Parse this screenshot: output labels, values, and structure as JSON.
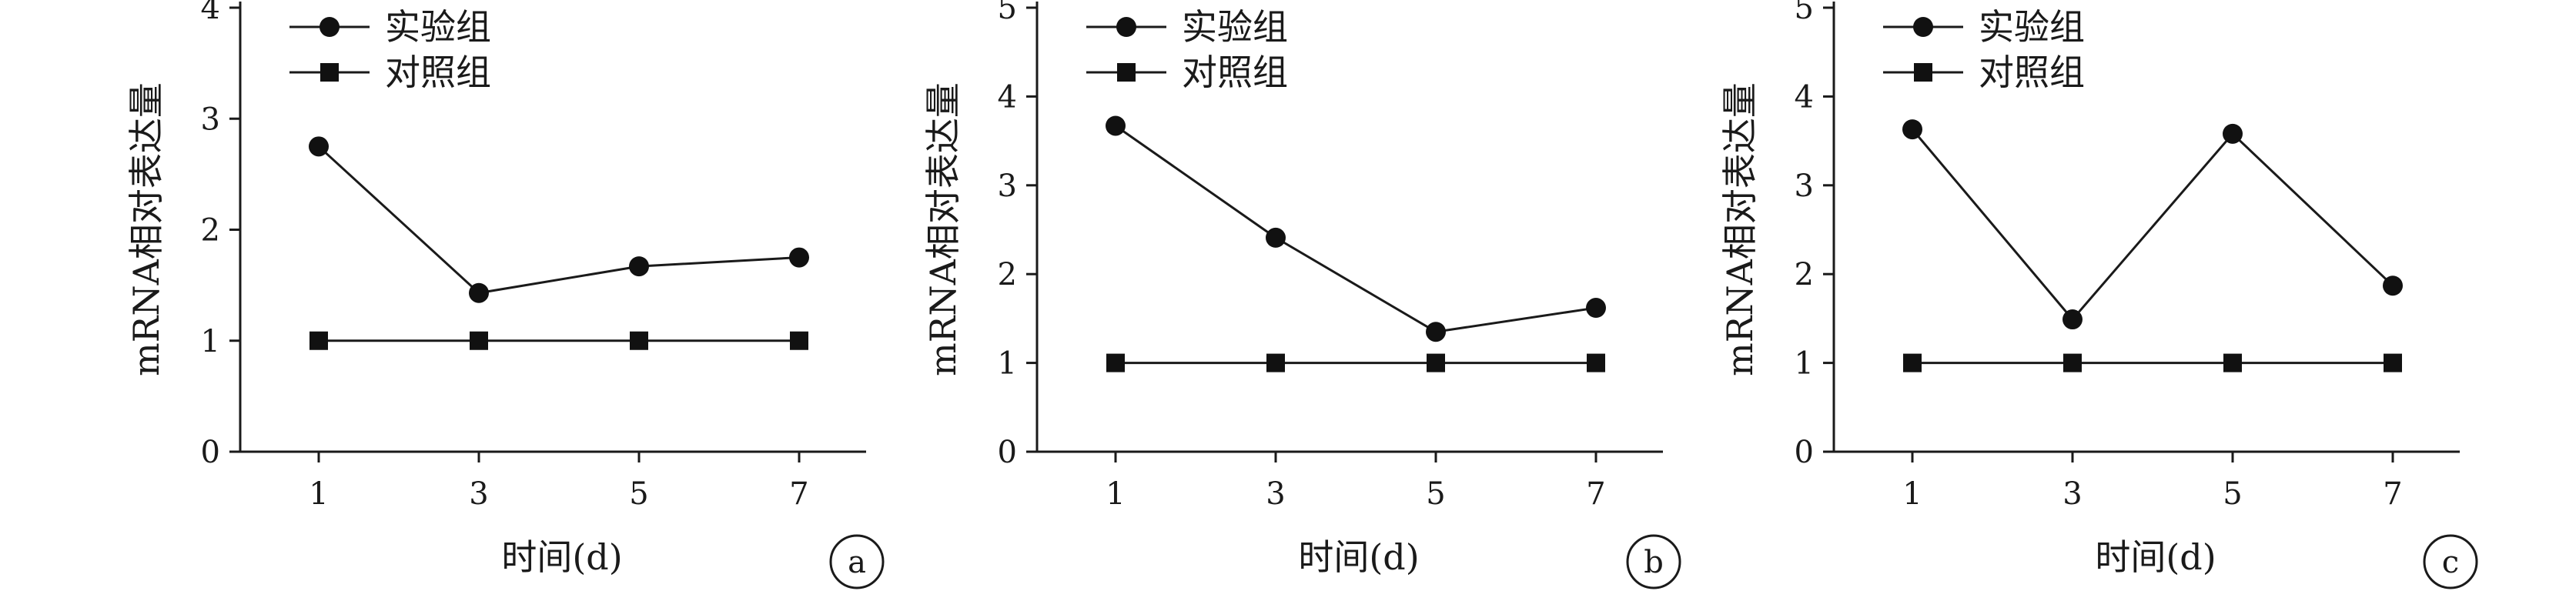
{
  "chart_data": [
    {
      "type": "line",
      "panel_label": "a",
      "x": [
        1,
        3,
        5,
        7
      ],
      "xlabel": "时间(d)",
      "ylabel": "mRNA相对表达量",
      "ylim": [
        0,
        4
      ],
      "yticks": [
        0,
        1,
        2,
        3,
        4
      ],
      "legend_position": "top-left",
      "series": [
        {
          "name": "实验组",
          "marker": "circle",
          "values": [
            2.75,
            1.43,
            1.67,
            1.75
          ]
        },
        {
          "name": "对照组",
          "marker": "square",
          "values": [
            1.0,
            1.0,
            1.0,
            1.0
          ]
        }
      ]
    },
    {
      "type": "line",
      "panel_label": "b",
      "x": [
        1,
        3,
        5,
        7
      ],
      "xlabel": "时间(d)",
      "ylabel": "mRNA相对表达量",
      "ylim": [
        0,
        5
      ],
      "yticks": [
        0,
        1,
        2,
        3,
        4,
        5
      ],
      "legend_position": "top-left",
      "series": [
        {
          "name": "实验组",
          "marker": "circle",
          "values": [
            3.67,
            2.41,
            1.35,
            1.62
          ]
        },
        {
          "name": "对照组",
          "marker": "square",
          "values": [
            1.0,
            1.0,
            1.0,
            1.0
          ]
        }
      ]
    },
    {
      "type": "line",
      "panel_label": "c",
      "x": [
        1,
        3,
        5,
        7
      ],
      "xlabel": "时间(d)",
      "ylabel": "mRNA相对表达量",
      "ylim": [
        0,
        5
      ],
      "yticks": [
        0,
        1,
        2,
        3,
        4,
        5
      ],
      "legend_position": "top-left",
      "series": [
        {
          "name": "实验组",
          "marker": "circle",
          "values": [
            3.63,
            1.49,
            3.58,
            1.87
          ]
        },
        {
          "name": "对照组",
          "marker": "square",
          "values": [
            1.0,
            1.0,
            1.0,
            1.0
          ]
        }
      ]
    }
  ]
}
